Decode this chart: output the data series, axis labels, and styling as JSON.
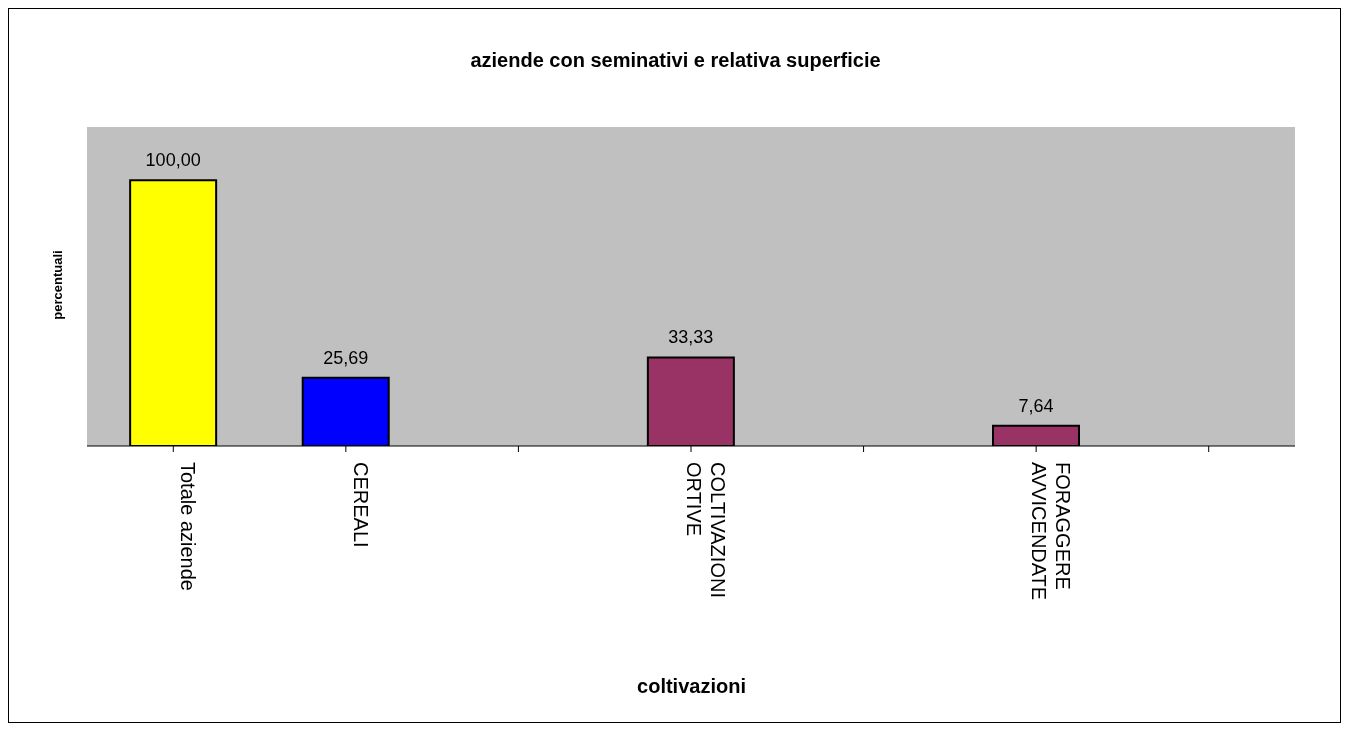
{
  "chart_data": {
    "type": "bar",
    "title": "aziende con seminativi e relativa superficie",
    "xlabel": "coltivazioni",
    "ylabel": "percentuali",
    "categories": [
      "Totale aziende",
      "CEREALI",
      null,
      "COLTIVAZIONI ORTIVE",
      null,
      "FORAGGERE AVVICENDATE",
      null
    ],
    "values": [
      100,
      25.69,
      null,
      33.33,
      null,
      7.64,
      null
    ],
    "colors": [
      "#ffff00",
      "#0000ff",
      null,
      "#993366",
      null,
      "#993366",
      null
    ],
    "value_labels": [
      "100,00",
      "25,69",
      null,
      "33,33",
      null,
      "7,64",
      null
    ],
    "ylim": [
      0,
      120
    ],
    "tick_labels": "x",
    "legend": false
  }
}
